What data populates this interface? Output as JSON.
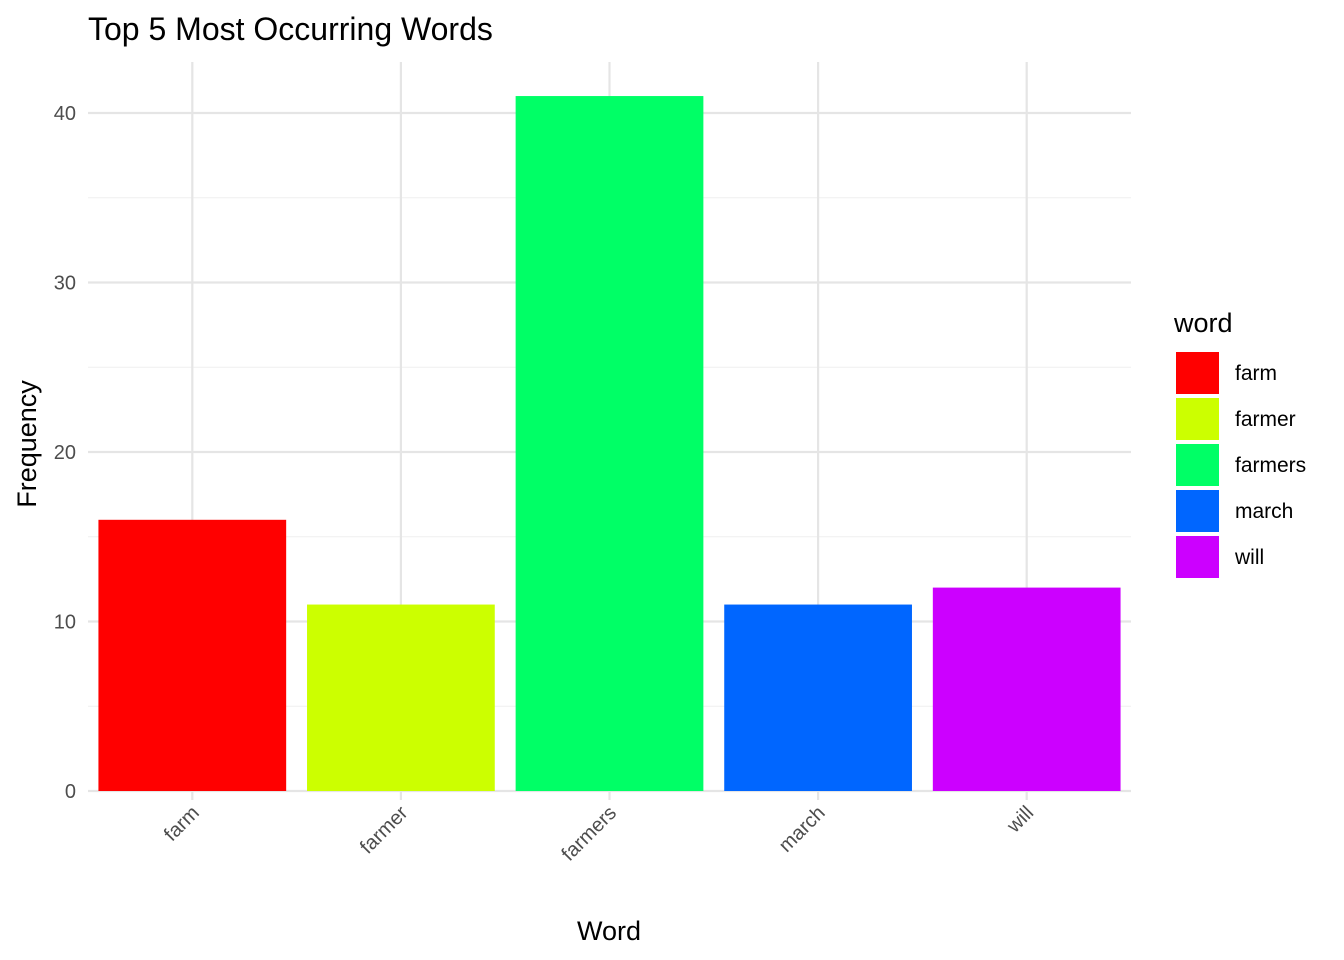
{
  "chart_data": {
    "type": "bar",
    "title": "Top 5 Most Occurring Words",
    "xlabel": "Word",
    "ylabel": "Frequency",
    "categories": [
      "farm",
      "farmer",
      "farmers",
      "march",
      "will"
    ],
    "values": [
      16,
      11,
      41,
      11,
      12
    ],
    "colors": [
      "#FF0000",
      "#CCFF00",
      "#00FF66",
      "#0066FF",
      "#CC00FF"
    ],
    "ylim": [
      0,
      43
    ],
    "yticks": [
      0,
      10,
      20,
      30,
      40
    ],
    "ytick_labels": [
      "0",
      "10",
      "20",
      "30",
      "40"
    ],
    "grid": true,
    "legend": {
      "title": "word",
      "position": "right",
      "items": [
        "farm",
        "farmer",
        "farmers",
        "march",
        "will"
      ]
    }
  }
}
